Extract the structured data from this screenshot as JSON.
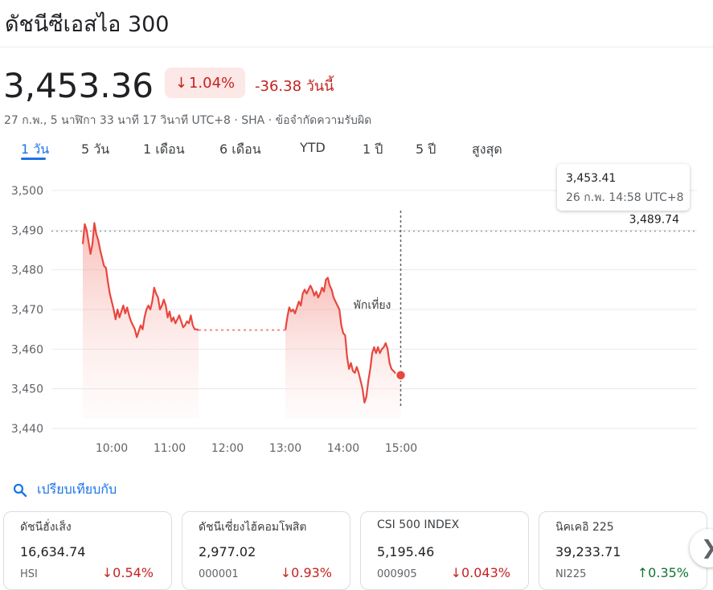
{
  "title": "ดัชนีซีเอสไอ 300",
  "price": "3,453.36",
  "change_percent": "1.04%",
  "change_direction": "down",
  "change_absolute": "-36.38 วันนี้",
  "meta_line": "27 ก.พ., 5 นาฬิกา 33 นาที 17 วินาที UTC+8 · SHA · ข้อจำกัดความรับผิด",
  "tabs": [
    "1 วัน",
    "5 วัน",
    "1 เดือน",
    "6 เดือน",
    "YTD",
    "1 ปี",
    "5 ปี",
    "สูงสุด"
  ],
  "active_tab": "1 วัน",
  "tooltip": {
    "value": "3,453.41",
    "time": "26 ก.พ. 14:58 UTC+8"
  },
  "compare_label": "เปรียบเทียบกับ",
  "colors": {
    "down": "#c5221f",
    "up": "#137333",
    "accent": "#1a73e8",
    "line": "#e8473f"
  },
  "chart_data": {
    "type": "line",
    "ylim": [
      3440,
      3500
    ],
    "yticks": [
      3500,
      3490,
      3480,
      3470,
      3460,
      3450,
      3440
    ],
    "ytick_labels": [
      "3,500",
      "3,490",
      "3,480",
      "3,470",
      "3,460",
      "3,450",
      "3,440"
    ],
    "xticks": [
      "10:00",
      "11:00",
      "12:00",
      "13:00",
      "14:00",
      "15:00"
    ],
    "previous_close": 3489.74,
    "previous_close_label": "3,489.74",
    "break_label": "พักเที่ยง",
    "break_start": "11:30",
    "break_end": "13:00",
    "break_value": 3464.8,
    "grid": true,
    "morning_session": [
      [
        "09:30",
        3486.5
      ],
      [
        "09:32",
        3491.5
      ],
      [
        "09:34",
        3490.0
      ],
      [
        "09:36",
        3487.0
      ],
      [
        "09:38",
        3484.0
      ],
      [
        "09:40",
        3486.5
      ],
      [
        "09:42",
        3491.8
      ],
      [
        "09:44",
        3489.0
      ],
      [
        "09:46",
        3487.5
      ],
      [
        "09:48",
        3485.0
      ],
      [
        "09:50",
        3483.0
      ],
      [
        "09:52",
        3481.0
      ],
      [
        "09:54",
        3480.5
      ],
      [
        "09:56",
        3477.0
      ],
      [
        "09:58",
        3474.0
      ],
      [
        "10:00",
        3472.0
      ],
      [
        "10:02",
        3470.0
      ],
      [
        "10:04",
        3467.5
      ],
      [
        "10:06",
        3470.0
      ],
      [
        "10:08",
        3468.0
      ],
      [
        "10:10",
        3469.5
      ],
      [
        "10:12",
        3471.0
      ],
      [
        "10:14",
        3469.0
      ],
      [
        "10:16",
        3470.5
      ],
      [
        "10:18",
        3468.5
      ],
      [
        "10:20",
        3467.0
      ],
      [
        "10:22",
        3466.0
      ],
      [
        "10:24",
        3465.0
      ],
      [
        "10:26",
        3463.0
      ],
      [
        "10:28",
        3464.5
      ],
      [
        "10:30",
        3466.0
      ],
      [
        "10:32",
        3465.0
      ],
      [
        "10:34",
        3468.0
      ],
      [
        "10:36",
        3470.0
      ],
      [
        "10:38",
        3471.0
      ],
      [
        "10:40",
        3470.0
      ],
      [
        "10:42",
        3472.0
      ],
      [
        "10:44",
        3475.5
      ],
      [
        "10:46",
        3474.0
      ],
      [
        "10:48",
        3473.0
      ],
      [
        "10:50",
        3470.0
      ],
      [
        "10:52",
        3471.0
      ],
      [
        "10:54",
        3472.5
      ],
      [
        "10:56",
        3471.0
      ],
      [
        "10:58",
        3468.0
      ],
      [
        "11:00",
        3469.5
      ],
      [
        "11:02",
        3467.0
      ],
      [
        "11:04",
        3468.0
      ],
      [
        "11:06",
        3466.5
      ],
      [
        "11:08",
        3467.5
      ],
      [
        "11:10",
        3468.5
      ],
      [
        "11:12",
        3467.0
      ],
      [
        "11:14",
        3465.5
      ],
      [
        "11:16",
        3466.0
      ],
      [
        "11:18",
        3467.0
      ],
      [
        "11:20",
        3466.5
      ],
      [
        "11:22",
        3468.5
      ],
      [
        "11:24",
        3466.0
      ],
      [
        "11:26",
        3465.0
      ],
      [
        "11:28",
        3465.0
      ],
      [
        "11:30",
        3464.8
      ]
    ],
    "afternoon_session": [
      [
        "13:00",
        3464.8
      ],
      [
        "13:02",
        3468.0
      ],
      [
        "13:04",
        3470.5
      ],
      [
        "13:06",
        3469.5
      ],
      [
        "13:08",
        3470.0
      ],
      [
        "13:10",
        3469.0
      ],
      [
        "13:12",
        3470.5
      ],
      [
        "13:14",
        3472.0
      ],
      [
        "13:16",
        3471.0
      ],
      [
        "13:18",
        3474.0
      ],
      [
        "13:20",
        3475.0
      ],
      [
        "13:22",
        3474.0
      ],
      [
        "13:24",
        3475.0
      ],
      [
        "13:26",
        3476.0
      ],
      [
        "13:28",
        3475.0
      ],
      [
        "13:30",
        3473.5
      ],
      [
        "13:32",
        3474.5
      ],
      [
        "13:34",
        3473.0
      ],
      [
        "13:36",
        3474.0
      ],
      [
        "13:38",
        3475.5
      ],
      [
        "13:40",
        3474.5
      ],
      [
        "13:42",
        3477.5
      ],
      [
        "13:44",
        3478.0
      ],
      [
        "13:46",
        3476.0
      ],
      [
        "13:48",
        3475.0
      ],
      [
        "13:50",
        3473.0
      ],
      [
        "13:52",
        3472.0
      ],
      [
        "13:54",
        3471.0
      ],
      [
        "13:56",
        3470.0
      ],
      [
        "13:58",
        3466.0
      ],
      [
        "14:00",
        3464.0
      ],
      [
        "14:02",
        3463.5
      ],
      [
        "14:04",
        3458.0
      ],
      [
        "14:06",
        3455.0
      ],
      [
        "14:08",
        3456.5
      ],
      [
        "14:10",
        3454.5
      ],
      [
        "14:12",
        3454.0
      ],
      [
        "14:14",
        3455.5
      ],
      [
        "14:16",
        3454.0
      ],
      [
        "14:18",
        3452.0
      ],
      [
        "14:20",
        3450.0
      ],
      [
        "14:22",
        3446.5
      ],
      [
        "14:24",
        3448.0
      ],
      [
        "14:26",
        3452.0
      ],
      [
        "14:28",
        3455.0
      ],
      [
        "14:30",
        3459.0
      ],
      [
        "14:32",
        3460.5
      ],
      [
        "14:34",
        3459.0
      ],
      [
        "14:36",
        3460.5
      ],
      [
        "14:38",
        3459.0
      ],
      [
        "14:40",
        3460.0
      ],
      [
        "14:42",
        3460.5
      ],
      [
        "14:44",
        3461.5
      ],
      [
        "14:46",
        3460.0
      ],
      [
        "14:48",
        3456.5
      ],
      [
        "14:50",
        3455.0
      ],
      [
        "14:52",
        3454.5
      ],
      [
        "14:54",
        3454.0
      ],
      [
        "14:56",
        3453.4
      ],
      [
        "14:58",
        3453.41
      ],
      [
        "15:00",
        3453.36
      ]
    ],
    "hover_time": "14:58",
    "hover_value": 3453.41
  },
  "cards": [
    {
      "name": "ดัชนีฮั่งเส็ง",
      "value": "16,634.74",
      "symbol": "HSI",
      "change": "0.54%",
      "direction": "down"
    },
    {
      "name": "ดัชนีเซี่ยงไฮ้คอมโพสิต",
      "value": "2,977.02",
      "symbol": "000001",
      "change": "0.93%",
      "direction": "down"
    },
    {
      "name": "CSI 500 INDEX",
      "value": "5,195.46",
      "symbol": "000905",
      "change": "0.043%",
      "direction": "down"
    },
    {
      "name": "นิคเคอิ 225",
      "value": "39,233.71",
      "symbol": "NI225",
      "change": "0.35%",
      "direction": "up"
    }
  ],
  "icons": {
    "search": "search-icon",
    "next": "chevron-right-icon",
    "down_arrow": "arrow-down-icon",
    "up_arrow": "arrow-up-icon"
  }
}
